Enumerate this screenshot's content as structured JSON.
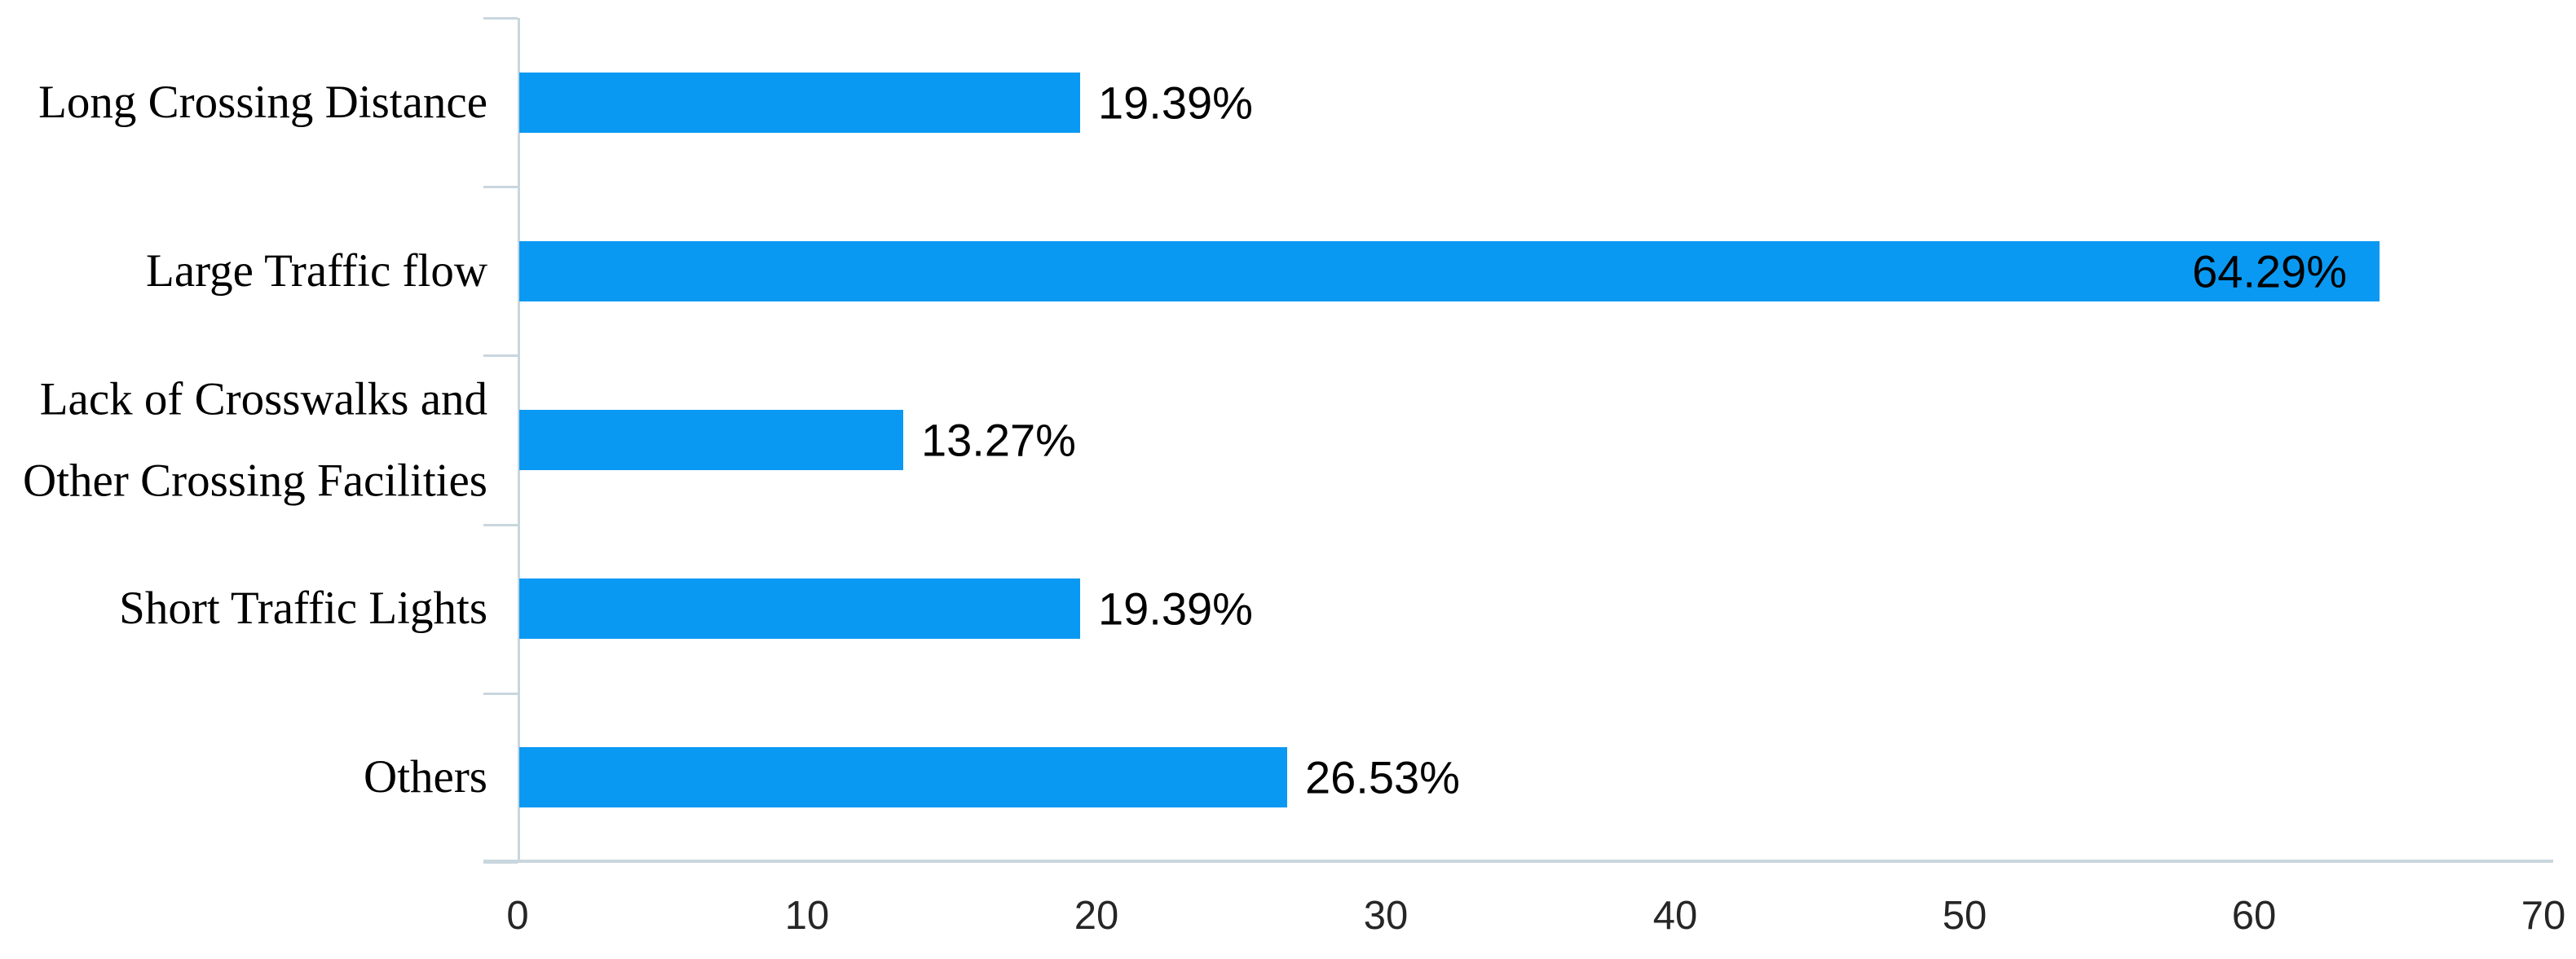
{
  "chart_data": {
    "type": "bar",
    "orientation": "horizontal",
    "title": "",
    "xlabel": "",
    "ylabel": "",
    "categories": [
      "Long Crossing Distance",
      "Large Traffic flow",
      "Lack of Crosswalks and Other Crossing Facilities",
      "Short Traffic Lights",
      "Others"
    ],
    "category_lines": [
      [
        "Long Crossing Distance"
      ],
      [
        "Large Traffic flow"
      ],
      [
        "Lack of Crosswalks and",
        "Other Crossing Facilities"
      ],
      [
        "Short Traffic Lights"
      ],
      [
        "Others"
      ]
    ],
    "values": [
      19.39,
      64.29,
      13.27,
      19.39,
      26.53
    ],
    "value_labels": [
      "19.39%",
      "64.29%",
      "13.27%",
      "19.39%",
      "26.53%"
    ],
    "value_label_inside": [
      false,
      true,
      false,
      false,
      false
    ],
    "xlim": [
      0,
      70
    ],
    "x_ticks": [
      0,
      10,
      20,
      30,
      40,
      50,
      60,
      70
    ],
    "grid": false,
    "legend": false,
    "colors": {
      "bar": "#0a99f2",
      "axis": "#c9d6de",
      "category_text": "#000000",
      "value_text": "#000000",
      "tick_text": "#262626"
    }
  }
}
